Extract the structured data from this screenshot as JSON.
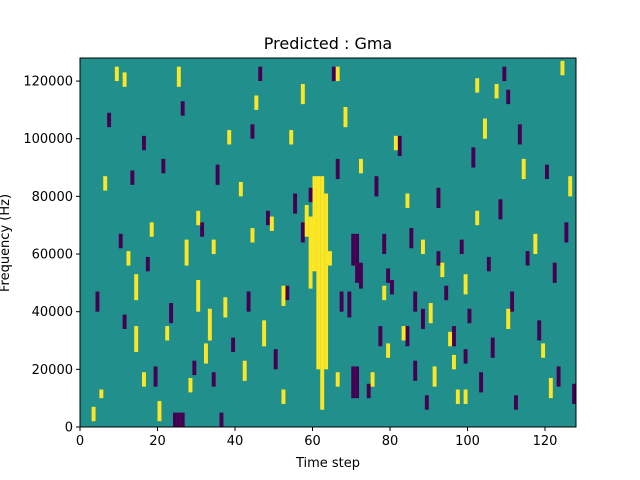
{
  "chart_data": {
    "type": "heatmap",
    "title": "Predicted : Gma",
    "xlabel": "Time step",
    "ylabel": "Frequency (Hz)",
    "xlim": [
      0,
      128
    ],
    "ylim": [
      0,
      128000
    ],
    "x_ticks": [
      0,
      20,
      40,
      60,
      80,
      100,
      120
    ],
    "y_ticks": [
      0,
      20000,
      40000,
      60000,
      80000,
      100000,
      120000
    ],
    "y_tick_labels": [
      "0",
      "20000",
      "40000",
      "60000",
      "80000",
      "100000",
      "120000"
    ],
    "grid_size": [
      128,
      128
    ],
    "colors": {
      "background": "#21908d",
      "low": "#440154",
      "high": "#fde725"
    },
    "grid": false,
    "legend": "none",
    "high_cells": [
      [
        60,
        54,
        86
      ],
      [
        61,
        20,
        86
      ],
      [
        62,
        6,
        86
      ],
      [
        63,
        20,
        80
      ],
      [
        59,
        48,
        72
      ],
      [
        58,
        66,
        76
      ],
      [
        3,
        2,
        6
      ],
      [
        5,
        10,
        12
      ],
      [
        9,
        120,
        124
      ],
      [
        11,
        118,
        122
      ],
      [
        14,
        44,
        52
      ],
      [
        16,
        14,
        18
      ],
      [
        20,
        2,
        8
      ],
      [
        22,
        30,
        34
      ],
      [
        25,
        118,
        124
      ],
      [
        27,
        56,
        64
      ],
      [
        30,
        70,
        74
      ],
      [
        32,
        22,
        28
      ],
      [
        34,
        60,
        64
      ],
      [
        37,
        38,
        44
      ],
      [
        38,
        98,
        102
      ],
      [
        41,
        80,
        84
      ],
      [
        42,
        16,
        22
      ],
      [
        45,
        110,
        114
      ],
      [
        47,
        28,
        36
      ],
      [
        49,
        68,
        72
      ],
      [
        52,
        8,
        12
      ],
      [
        54,
        98,
        102
      ],
      [
        57,
        112,
        118
      ],
      [
        66,
        120,
        124
      ],
      [
        68,
        104,
        110
      ],
      [
        72,
        88,
        92
      ],
      [
        75,
        14,
        18
      ],
      [
        78,
        44,
        48
      ],
      [
        81,
        96,
        100
      ],
      [
        84,
        76,
        80
      ],
      [
        88,
        60,
        64
      ],
      [
        90,
        36,
        42
      ],
      [
        93,
        52,
        56
      ],
      [
        96,
        20,
        24
      ],
      [
        99,
        46,
        52
      ],
      [
        102,
        70,
        74
      ],
      [
        104,
        100,
        106
      ],
      [
        107,
        114,
        118
      ],
      [
        110,
        34,
        40
      ],
      [
        114,
        86,
        92
      ],
      [
        117,
        60,
        66
      ],
      [
        119,
        24,
        28
      ],
      [
        121,
        10,
        16
      ],
      [
        124,
        122,
        126
      ],
      [
        126,
        80,
        86
      ],
      [
        14,
        26,
        34
      ],
      [
        30,
        40,
        50
      ],
      [
        33,
        30,
        40
      ],
      [
        44,
        64,
        68
      ],
      [
        52,
        42,
        48
      ],
      [
        64,
        56,
        60
      ],
      [
        97,
        8,
        12
      ],
      [
        99,
        8,
        12
      ],
      [
        91,
        14,
        20
      ],
      [
        79,
        24,
        28
      ],
      [
        83,
        30,
        34
      ],
      [
        66,
        14,
        18
      ],
      [
        28,
        12,
        16
      ],
      [
        18,
        66,
        70
      ],
      [
        6,
        82,
        86
      ],
      [
        12,
        56,
        60
      ],
      [
        102,
        116,
        120
      ],
      [
        95,
        28,
        32
      ]
    ],
    "low_cells": [
      [
        24,
        0,
        4
      ],
      [
        25,
        0,
        4
      ],
      [
        26,
        0,
        4
      ],
      [
        70,
        10,
        20
      ],
      [
        71,
        10,
        20
      ],
      [
        71,
        50,
        66
      ],
      [
        70,
        56,
        66
      ],
      [
        72,
        48,
        56
      ],
      [
        69,
        38,
        46
      ],
      [
        66,
        86,
        92
      ],
      [
        78,
        60,
        66
      ],
      [
        4,
        40,
        46
      ],
      [
        7,
        104,
        108
      ],
      [
        10,
        62,
        66
      ],
      [
        13,
        84,
        88
      ],
      [
        17,
        54,
        58
      ],
      [
        19,
        14,
        20
      ],
      [
        21,
        88,
        92
      ],
      [
        23,
        36,
        42
      ],
      [
        26,
        108,
        112
      ],
      [
        29,
        18,
        22
      ],
      [
        31,
        66,
        70
      ],
      [
        35,
        84,
        90
      ],
      [
        36,
        0,
        4
      ],
      [
        39,
        26,
        30
      ],
      [
        43,
        40,
        46
      ],
      [
        46,
        120,
        124
      ],
      [
        48,
        70,
        74
      ],
      [
        50,
        20,
        26
      ],
      [
        53,
        44,
        48
      ],
      [
        55,
        74,
        80
      ],
      [
        57,
        64,
        70
      ],
      [
        67,
        40,
        46
      ],
      [
        74,
        10,
        14
      ],
      [
        76,
        80,
        86
      ],
      [
        77,
        28,
        34
      ],
      [
        79,
        50,
        54
      ],
      [
        82,
        94,
        100
      ],
      [
        85,
        62,
        68
      ],
      [
        86,
        16,
        22
      ],
      [
        88,
        34,
        40
      ],
      [
        89,
        6,
        10
      ],
      [
        92,
        76,
        82
      ],
      [
        94,
        44,
        48
      ],
      [
        96,
        28,
        34
      ],
      [
        98,
        60,
        64
      ],
      [
        100,
        36,
        40
      ],
      [
        101,
        90,
        96
      ],
      [
        103,
        12,
        18
      ],
      [
        105,
        54,
        58
      ],
      [
        106,
        24,
        30
      ],
      [
        108,
        72,
        78
      ],
      [
        109,
        120,
        124
      ],
      [
        111,
        40,
        46
      ],
      [
        112,
        6,
        10
      ],
      [
        113,
        98,
        104
      ],
      [
        115,
        56,
        60
      ],
      [
        118,
        30,
        36
      ],
      [
        120,
        86,
        90
      ],
      [
        122,
        50,
        56
      ],
      [
        123,
        14,
        20
      ],
      [
        125,
        64,
        70
      ],
      [
        127,
        8,
        14
      ],
      [
        44,
        100,
        104
      ],
      [
        59,
        78,
        82
      ],
      [
        80,
        46,
        50
      ],
      [
        84,
        28,
        34
      ],
      [
        86,
        40,
        46
      ],
      [
        99,
        22,
        26
      ],
      [
        110,
        112,
        116
      ],
      [
        65,
        120,
        124
      ],
      [
        92,
        56,
        60
      ],
      [
        11,
        34,
        38
      ],
      [
        16,
        96,
        100
      ],
      [
        34,
        14,
        18
      ]
    ]
  }
}
